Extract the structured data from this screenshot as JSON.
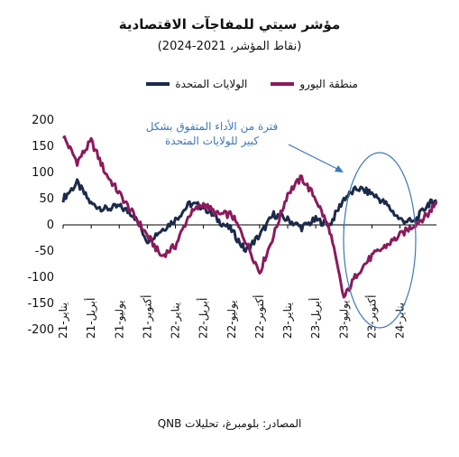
{
  "title": "مؤشر سيتي للمفاجآت الاقتصادية",
  "subtitle": "(نقاط المؤشر، 2021-2024)",
  "source": "المصادر: بلومبرغ، تحليلات QNB",
  "annotation_line1": "فترة من الأداء المتفوق بشكل",
  "annotation_line2": "كبير للولايات المتحدة",
  "colors": {
    "us": "#1c2a4a",
    "eu": "#8b1a5c",
    "annotation": "#3c78b8"
  },
  "chart_data": {
    "type": "line",
    "title": "مؤشر سيتي للمفاجآت الاقتصادية",
    "subtitle": "(نقاط المؤشر، 2021-2024)",
    "ylim": [
      -200,
      200
    ],
    "yticks": [
      200,
      150,
      100,
      50,
      0,
      -50,
      -100,
      -150,
      -200
    ],
    "categories": [
      "يناير-21",
      "أبريل-21",
      "يوليو-21",
      "أكتوبر-21",
      "يناير-22",
      "أبريل-22",
      "يوليو-22",
      "أكتوبر-22",
      "يناير-23",
      "أبريل-23",
      "يوليو-23",
      "أكتوبر-23",
      "يناير-24"
    ],
    "x": [
      0,
      0.5,
      1,
      1.5,
      2,
      2.5,
      3,
      3.5,
      4,
      4.5,
      5,
      5.5,
      6,
      6.5,
      7,
      7.5,
      8,
      8.5,
      9,
      9.5,
      10,
      10.5,
      11,
      11.5,
      12,
      12.5,
      13,
      13.3
    ],
    "series": [
      {
        "name": "الولايات المتحدة",
        "color": "#1c2a4a",
        "values": [
          50,
          80,
          40,
          30,
          35,
          20,
          -30,
          -10,
          10,
          40,
          35,
          10,
          -10,
          -50,
          -20,
          20,
          10,
          -5,
          10,
          0,
          50,
          70,
          60,
          40,
          10,
          5,
          40,
          45
        ]
      },
      {
        "name": "منطقة اليورو",
        "color": "#8b1a5c",
        "values": [
          170,
          120,
          160,
          100,
          60,
          20,
          -20,
          -60,
          -40,
          20,
          40,
          20,
          20,
          -30,
          -90,
          -20,
          60,
          90,
          50,
          -10,
          -140,
          -90,
          -60,
          -40,
          -20,
          0,
          20,
          45
        ]
      }
    ],
    "legend_position": "top",
    "grid": false
  }
}
